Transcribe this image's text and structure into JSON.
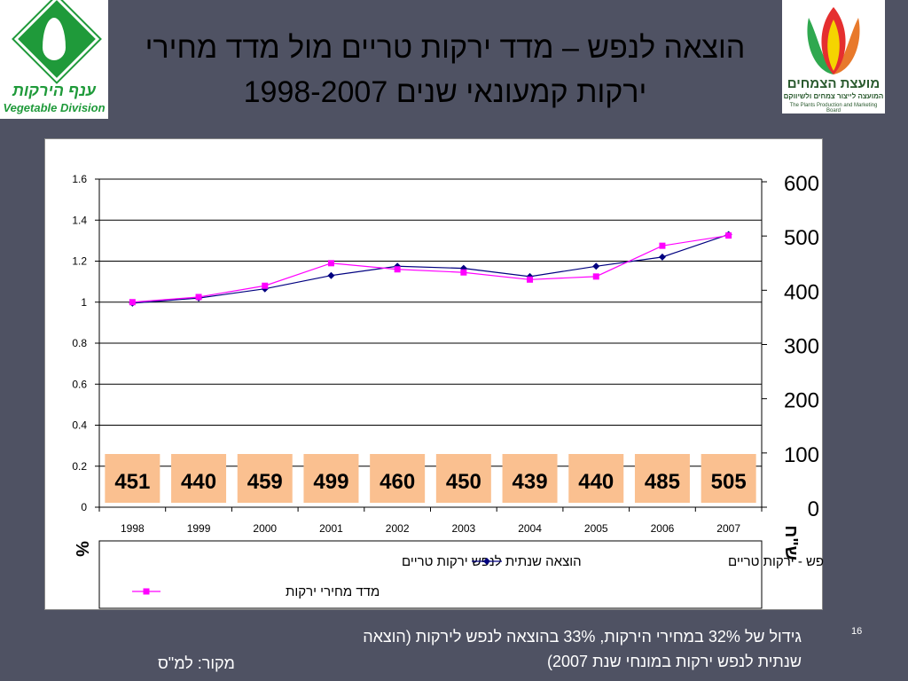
{
  "header": {
    "title_line1": "הוצאה לנפש – מדד ירקות טריים מול מדד מחירי",
    "title_line2": "ירקות קמעונאי שנים 1998-2007"
  },
  "logos": {
    "left_hebrew": "ענף הירקות",
    "left_english": "Vegetable Division",
    "right_hebrew": "מועצת הצמחים",
    "right_hebrew_sub": "המועצה לייצור צמחים ולשיווקם",
    "right_english": "The Plants Production and Marketing Board"
  },
  "chart_data": {
    "type": "line",
    "x": [
      "1998",
      "1999",
      "2000",
      "2001",
      "2002",
      "2003",
      "2004",
      "2005",
      "2006",
      "2007"
    ],
    "series": [
      {
        "name": "מדד הוצאה לנפש - ירקות טריים",
        "values": [
          0.995,
          1.02,
          1.065,
          1.13,
          1.175,
          1.165,
          1.125,
          1.175,
          1.22,
          1.33
        ],
        "color": "#000080",
        "marker": "diamond"
      },
      {
        "name": "מדד מחירי ירקות",
        "values": [
          1.0,
          1.025,
          1.08,
          1.19,
          1.16,
          1.145,
          1.11,
          1.125,
          1.275,
          1.325
        ],
        "color": "#ff00ff",
        "marker": "square"
      }
    ],
    "bars": {
      "name": "הוצאה שנתית  לנפש ירקות טריים",
      "values": [
        451,
        440,
        459,
        499,
        460,
        450,
        439,
        440,
        485,
        505
      ],
      "color": "#fac090"
    },
    "y_left": {
      "label": "%",
      "ticks": [
        "0",
        "0.2",
        "0.4",
        "0.6",
        "0.8",
        "1",
        "1.2",
        "1.4",
        "1.6"
      ],
      "ylim": [
        0,
        1.6
      ]
    },
    "y_right": {
      "label": "ש\"ח",
      "ticks": [
        "0",
        "100",
        "200",
        "300",
        "400",
        "500",
        "600"
      ],
      "ylim": [
        0,
        600
      ]
    },
    "grid": true,
    "legend_position": "bottom"
  },
  "footer": {
    "note_line1": "גידול של 32% במחירי הירקות, 33% בהוצאה לנפש לירקות (הוצאה",
    "note_line2": "שנתית לנפש ירקות במונחי שנת 2007)",
    "source": "מקור: למ\"ס",
    "page_number": "16"
  }
}
